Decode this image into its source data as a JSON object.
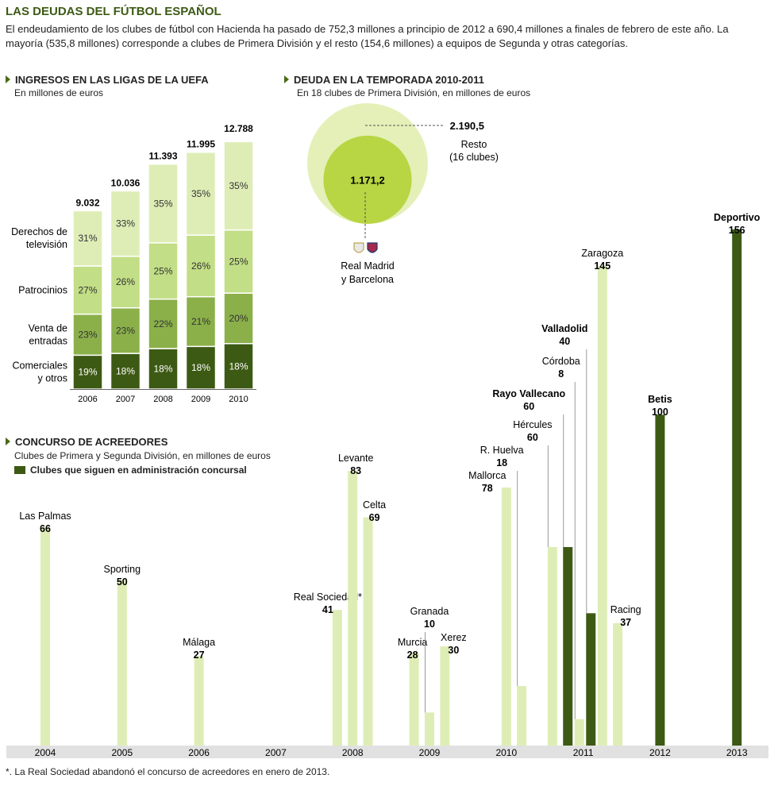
{
  "title": "LAS DEUDAS DEL FÚTBOL ESPAÑOL",
  "intro": "El endeudamiento de los clubes de fútbol con Hacienda ha pasado de 752,3 millones a principio de 2012 a 690,4 millones a finales de febrero de este año. La mayoría  (535,8 millones) corresponde a clubes de Primera División y el resto (154,6 millones) a equipos de Segunda  y otras categorías.",
  "footnote": "*. La Real Sociedad abandonó el concurso de acreedores en enero de 2013.",
  "colors": {
    "dark": "#3d5a14",
    "mid": "#8bb04a",
    "light": "#c2de86",
    "pale": "#deedb6",
    "lime": "#b8d544",
    "paleCircle": "#e4f0b8"
  },
  "chart_data": [
    {
      "type": "bar",
      "title": "INGRESOS EN LAS LIGAS DE LA UEFA",
      "subtitle": "En millones de euros",
      "categories": [
        "2006",
        "2007",
        "2008",
        "2009",
        "2010"
      ],
      "totals": [
        "9.032",
        "10.036",
        "11.393",
        "11.995",
        "12.788"
      ],
      "total_values": [
        9032,
        10036,
        11393,
        11995,
        12788
      ],
      "series": [
        {
          "name": "Comerciales y otros",
          "label_lines": [
            "Comerciales",
            "y otros"
          ],
          "values": [
            19,
            18,
            18,
            18,
            18
          ],
          "color": "#3d5a14"
        },
        {
          "name": "Venta de entradas",
          "label_lines": [
            "Venta de",
            "entradas"
          ],
          "values": [
            23,
            23,
            22,
            21,
            20
          ],
          "color": "#8bb04a"
        },
        {
          "name": "Patrocinios",
          "label_lines": [
            "Patrocinios"
          ],
          "values": [
            27,
            26,
            25,
            26,
            25
          ],
          "color": "#c2de86"
        },
        {
          "name": "Derechos de televisión",
          "label_lines": [
            "Derechos de",
            "televisión"
          ],
          "values": [
            31,
            33,
            35,
            35,
            35
          ],
          "color": "#deedb6"
        }
      ]
    },
    {
      "type": "bubble",
      "title": "DEUDA EN LA TEMPORADA 2010-2011",
      "subtitle": "En 18 clubes de Primera División, en millones de euros",
      "outer": {
        "value": 2190.5,
        "label": "2.190,5",
        "name_lines": [
          "Resto",
          "(16 clubes)"
        ]
      },
      "inner": {
        "value": 1171.2,
        "label": "1.171,2",
        "name_lines": [
          "Real Madrid",
          "y Barcelona"
        ]
      }
    },
    {
      "type": "bar",
      "title": "CONCURSO DE ACREEDORES",
      "subtitle": "Clubes de Primera y Segunda División, en millones de euros",
      "legend": "Clubes que siguen en administración concursal",
      "years": [
        "2004",
        "2005",
        "2006",
        "2007",
        "2008",
        "2009",
        "2010",
        "2011",
        "2012",
        "2013"
      ],
      "clubs": [
        {
          "name": "Las Palmas",
          "value": 66,
          "label": "66",
          "t": 2004.0,
          "active": false
        },
        {
          "name": "Sporting",
          "value": 50,
          "label": "50",
          "t": 2005.0,
          "active": false
        },
        {
          "name": "Málaga",
          "value": 27,
          "label": "27",
          "t": 2006.0,
          "active": false
        },
        {
          "name": "Real Sociedad*",
          "value": 41,
          "label": "41",
          "t": 2007.8,
          "active": false
        },
        {
          "name": "Levante",
          "value": 83,
          "label": "83",
          "t": 2008.0,
          "active": false
        },
        {
          "name": "Celta",
          "value": 69,
          "label": "69",
          "t": 2008.2,
          "active": false
        },
        {
          "name": "Murcia",
          "value": 28,
          "label": "28",
          "t": 2008.8,
          "active": false
        },
        {
          "name": "Granada",
          "value": 10,
          "label": "10",
          "t": 2009.0,
          "active": false
        },
        {
          "name": "Xerez",
          "value": 30,
          "label": "30",
          "t": 2009.2,
          "active": false
        },
        {
          "name": "Mallorca",
          "value": 78,
          "label": "78",
          "t": 2010.0,
          "active": false
        },
        {
          "name": "R. Huelva",
          "value": 18,
          "label": "18",
          "t": 2010.2,
          "active": false
        },
        {
          "name": "Hércules",
          "value": 60,
          "label": "60",
          "t": 2010.6,
          "active": false
        },
        {
          "name": "Rayo Vallecano",
          "value": 60,
          "label": "60",
          "t": 2010.8,
          "active": true
        },
        {
          "name": "Córdoba",
          "value": 8,
          "label": "8",
          "t": 2010.95,
          "active": false
        },
        {
          "name": "Valladolid",
          "value": 40,
          "label": "40",
          "t": 2011.1,
          "active": true
        },
        {
          "name": "Zaragoza",
          "value": 145,
          "label": "145",
          "t": 2011.25,
          "active": false
        },
        {
          "name": "Racing",
          "value": 37,
          "label": "37",
          "t": 2011.45,
          "active": false
        },
        {
          "name": "Betis",
          "value": 100,
          "label": "100",
          "t": 2012.0,
          "active": true
        },
        {
          "name": "Deportivo",
          "value": 156,
          "label": "156",
          "t": 2013.0,
          "active": true
        }
      ]
    }
  ]
}
